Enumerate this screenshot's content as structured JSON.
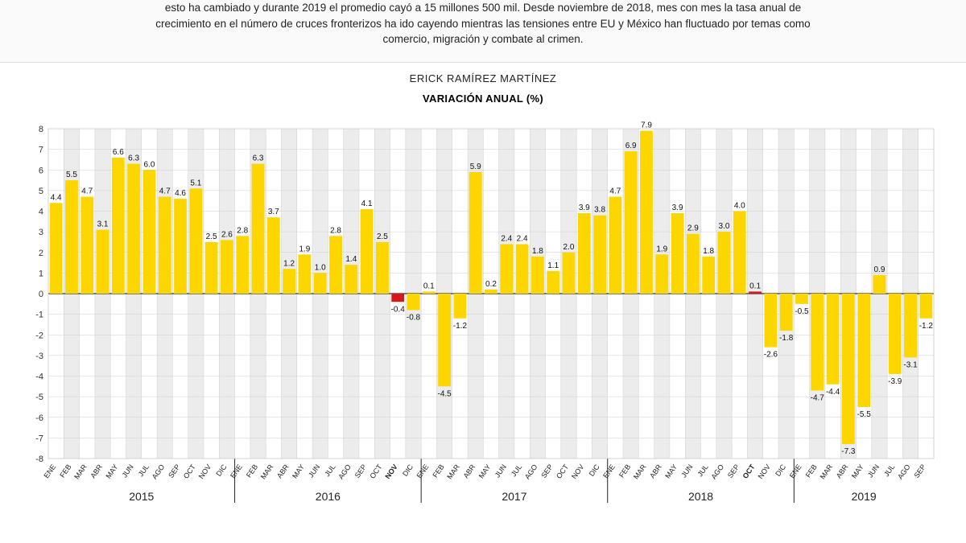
{
  "intro_text": "esto ha cambiado y durante 2019 el promedio cayó a 15 millones 500 mil. Desde noviembre de 2018, mes con mes la tasa anual de crecimiento en el número de cruces fronterizos ha ido cayendo mientras las tensiones entre EU y México han fluctuado por temas como comercio, migración y combate al crimen.",
  "author": "ERICK RAMÍREZ MARTÍNEZ",
  "chart": {
    "title": "VARIACIÓN ANUAL (%)",
    "type": "bar",
    "ylim": [
      -8,
      8
    ],
    "ytick_step": 1,
    "grid_color": "#cfcfcf",
    "alt_bg_color": "#ececec",
    "background_color": "#ffffff",
    "zero_line_color": "#555555",
    "bar_color": "#fdd600",
    "highlight_color": "#d8171b",
    "label_fontsize": 10,
    "month_fontsize": 9,
    "year_fontsize": 14,
    "bar_width_ratio": 0.82,
    "years": [
      "2015",
      "2016",
      "2017",
      "2018",
      "2019"
    ],
    "months": [
      "ENE",
      "FEB",
      "MAR",
      "ABR",
      "MAY",
      "JUN",
      "JUL",
      "AGO",
      "SEP",
      "OCT",
      "NOV",
      "DIC"
    ],
    "data": [
      {
        "m": "ENE",
        "y": "2015",
        "v": 4.4
      },
      {
        "m": "FEB",
        "y": "2015",
        "v": 5.5
      },
      {
        "m": "MAR",
        "y": "2015",
        "v": 4.7
      },
      {
        "m": "ABR",
        "y": "2015",
        "v": 3.1
      },
      {
        "m": "MAY",
        "y": "2015",
        "v": 6.6
      },
      {
        "m": "JUN",
        "y": "2015",
        "v": 6.3
      },
      {
        "m": "JUL",
        "y": "2015",
        "v": 6.0
      },
      {
        "m": "AGO",
        "y": "2015",
        "v": 4.7
      },
      {
        "m": "SEP",
        "y": "2015",
        "v": 4.6
      },
      {
        "m": "OCT",
        "y": "2015",
        "v": 5.1
      },
      {
        "m": "NOV",
        "y": "2015",
        "v": 2.5
      },
      {
        "m": "DIC",
        "y": "2015",
        "v": 2.6
      },
      {
        "m": "ENE",
        "y": "2016",
        "v": 2.8
      },
      {
        "m": "FEB",
        "y": "2016",
        "v": 6.3
      },
      {
        "m": "MAR",
        "y": "2016",
        "v": 3.7
      },
      {
        "m": "ABR",
        "y": "2016",
        "v": 1.2
      },
      {
        "m": "MAY",
        "y": "2016",
        "v": 1.9
      },
      {
        "m": "JUN",
        "y": "2016",
        "v": 1.0
      },
      {
        "m": "JUL",
        "y": "2016",
        "v": 2.8
      },
      {
        "m": "AGO",
        "y": "2016",
        "v": 1.4
      },
      {
        "m": "SEP",
        "y": "2016",
        "v": 4.1
      },
      {
        "m": "OCT",
        "y": "2016",
        "v": 2.5
      },
      {
        "m": "NOV",
        "y": "2016",
        "v": -0.4,
        "hl": true
      },
      {
        "m": "DIC",
        "y": "2016",
        "v": -0.8
      },
      {
        "m": "ENE",
        "y": "2017",
        "v": 0.1
      },
      {
        "m": "FEB",
        "y": "2017",
        "v": -4.5
      },
      {
        "m": "MAR",
        "y": "2017",
        "v": -1.2
      },
      {
        "m": "ABR",
        "y": "2017",
        "v": 5.9
      },
      {
        "m": "MAY",
        "y": "2017",
        "v": 0.2
      },
      {
        "m": "JUN",
        "y": "2017",
        "v": 2.4
      },
      {
        "m": "JUL",
        "y": "2017",
        "v": 2.4
      },
      {
        "m": "AGO",
        "y": "2017",
        "v": 1.8
      },
      {
        "m": "SEP",
        "y": "2017",
        "v": 1.1
      },
      {
        "m": "OCT",
        "y": "2017",
        "v": 2.0
      },
      {
        "m": "NOV",
        "y": "2017",
        "v": 3.9
      },
      {
        "m": "DIC",
        "y": "2017",
        "v": 3.8
      },
      {
        "m": "ENE",
        "y": "2018",
        "v": 4.7
      },
      {
        "m": "FEB",
        "y": "2018",
        "v": 6.9
      },
      {
        "m": "MAR",
        "y": "2018",
        "v": 7.9
      },
      {
        "m": "ABR",
        "y": "2018",
        "v": 1.9
      },
      {
        "m": "MAY",
        "y": "2018",
        "v": 3.9
      },
      {
        "m": "JUN",
        "y": "2018",
        "v": 2.9
      },
      {
        "m": "JUL",
        "y": "2018",
        "v": 1.8
      },
      {
        "m": "AGO",
        "y": "2018",
        "v": 3.0
      },
      {
        "m": "SEP",
        "y": "2018",
        "v": 4.0
      },
      {
        "m": "OCT",
        "y": "2018",
        "v": 0.1,
        "hl": true
      },
      {
        "m": "NOV",
        "y": "2018",
        "v": -2.6
      },
      {
        "m": "DIC",
        "y": "2018",
        "v": -1.8
      },
      {
        "m": "ENE",
        "y": "2019",
        "v": -0.5
      },
      {
        "m": "FEB",
        "y": "2019",
        "v": -4.7
      },
      {
        "m": "MAR",
        "y": "2019",
        "v": -4.4
      },
      {
        "m": "ABR",
        "y": "2019",
        "v": -7.3
      },
      {
        "m": "MAY",
        "y": "2019",
        "v": -5.5
      },
      {
        "m": "JUN",
        "y": "2019",
        "v": 0.9
      },
      {
        "m": "JUL",
        "y": "2019",
        "v": -3.9
      },
      {
        "m": "AGO",
        "y": "2019",
        "v": -3.1
      },
      {
        "m": "SEP",
        "y": "2019",
        "v": -1.2
      }
    ]
  }
}
